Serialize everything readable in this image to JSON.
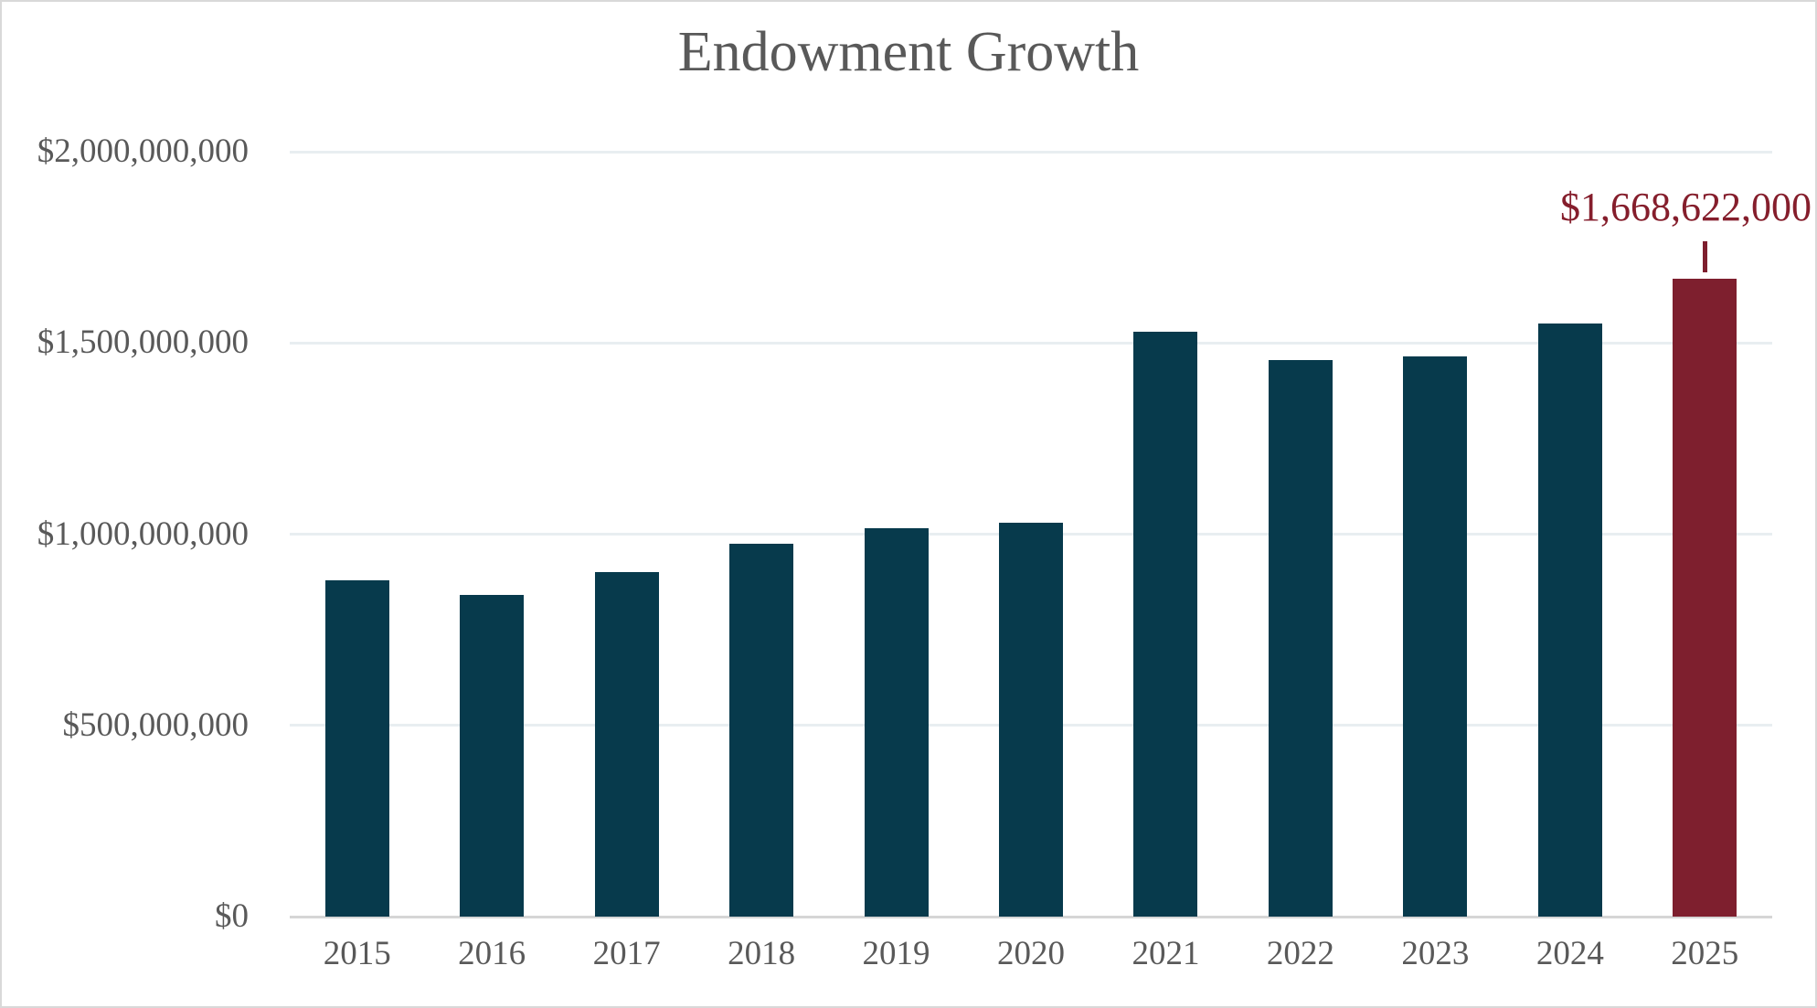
{
  "chart_data": {
    "type": "bar",
    "title": "Endowment Growth",
    "categories": [
      "2015",
      "2016",
      "2017",
      "2018",
      "2019",
      "2020",
      "2021",
      "2022",
      "2023",
      "2024",
      "2025"
    ],
    "values": [
      880000000,
      840000000,
      900000000,
      975000000,
      1015000000,
      1030000000,
      1530000000,
      1455000000,
      1465000000,
      1550000000,
      1668622000
    ],
    "unit": "USD",
    "xlabel": "",
    "ylabel": "",
    "ylim": [
      0,
      2000000000
    ],
    "grid": true,
    "legend": false,
    "yticks": [
      {
        "value": 0,
        "label": "$0"
      },
      {
        "value": 500000000,
        "label": "$500,000,000"
      },
      {
        "value": 1000000000,
        "label": "$1,000,000,000"
      },
      {
        "value": 1500000000,
        "label": "$1,500,000,000"
      },
      {
        "value": 2000000000,
        "label": "$2,000,000,000"
      }
    ],
    "highlight": {
      "index": 10,
      "category": "2025",
      "label": "$1,668,622,000"
    },
    "colors": {
      "bar": "#073a4c",
      "bar_highlight": "#7e1f2e",
      "annotation_text": "#851e2c",
      "title_text": "#595959",
      "axis_text": "#595959",
      "gridline": "#e8eef1",
      "axis_line": "#d6d6d6",
      "border": "#d9d9d9",
      "background": "#ffffff"
    }
  }
}
